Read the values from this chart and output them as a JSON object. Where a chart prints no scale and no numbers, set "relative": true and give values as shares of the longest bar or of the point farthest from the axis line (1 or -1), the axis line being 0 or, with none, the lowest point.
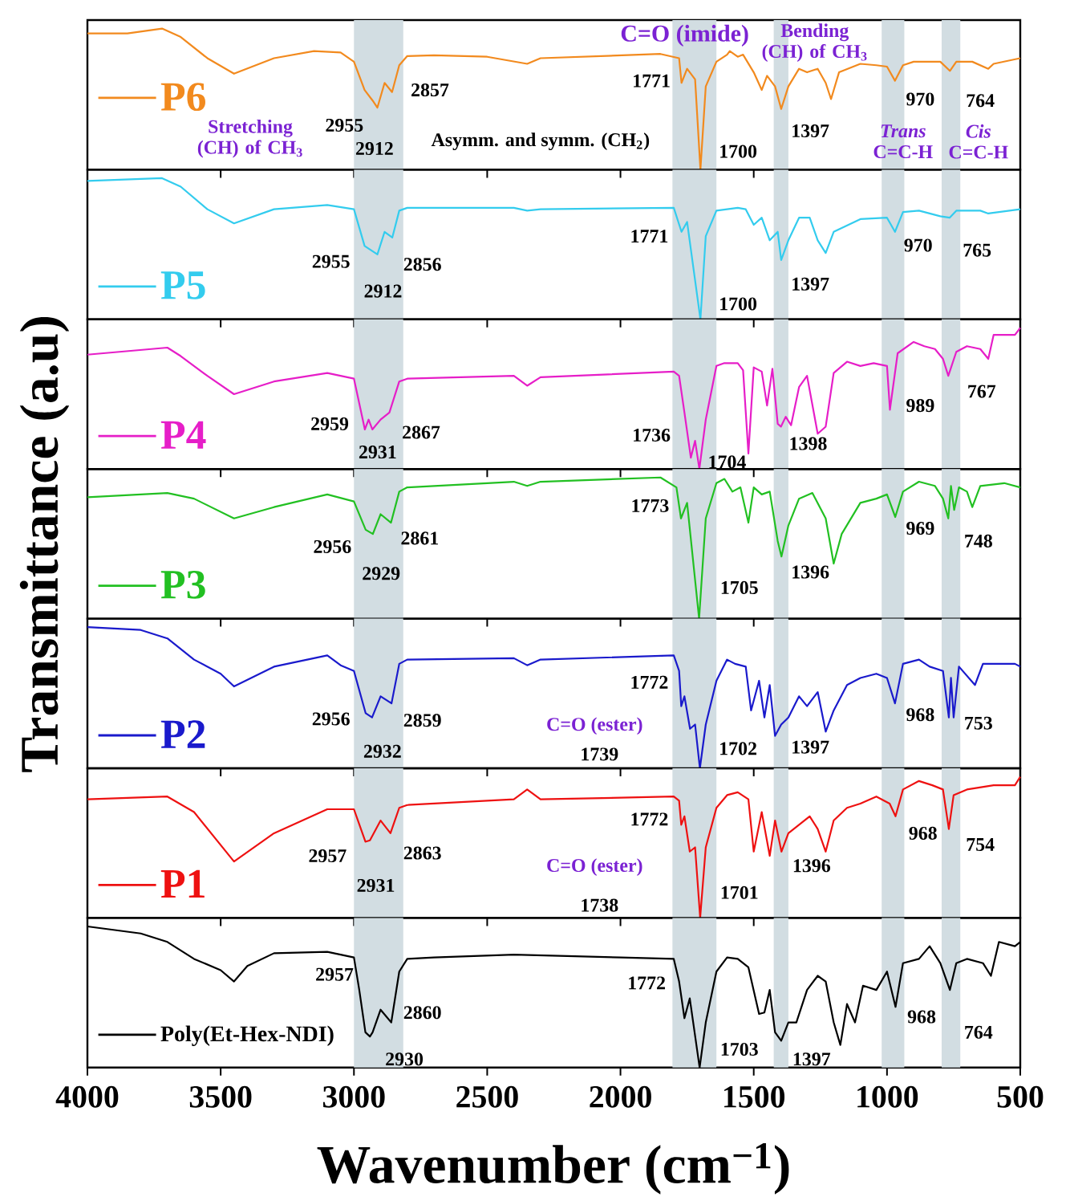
{
  "chart_data": [
    {
      "type": "line",
      "relative": true,
      "xlim": [
        4000,
        500
      ],
      "xticks": [
        4000,
        3500,
        3000,
        2500,
        2000,
        1500,
        1000,
        500
      ],
      "tick_labels": false,
      "legend": "left",
      "x": [
        4000,
        3850,
        3720,
        3650,
        3550,
        3450,
        3300,
        3150,
        3050,
        3000,
        2960,
        2930,
        2912,
        2885,
        2857,
        2830,
        2800,
        2700,
        2500,
        2350,
        2300,
        2000,
        1850,
        1780,
        1771,
        1750,
        1720,
        1700,
        1680,
        1640,
        1600,
        1590,
        1560,
        1540,
        1500,
        1470,
        1450,
        1420,
        1397,
        1370,
        1330,
        1300,
        1260,
        1230,
        1210,
        1180,
        1100,
        1040,
        1000,
        970,
        940,
        900,
        800,
        764,
        740,
        680,
        620,
        600,
        500
      ],
      "series": [
        {
          "name": "P6",
          "color": "#f28a1e",
          "values": [
            0.965,
            0.965,
            1.0,
            0.94,
            0.79,
            0.68,
            0.79,
            0.84,
            0.83,
            0.765,
            0.565,
            0.49,
            0.44,
            0.615,
            0.55,
            0.74,
            0.805,
            0.81,
            0.8,
            0.75,
            0.79,
            0.81,
            0.82,
            0.79,
            0.615,
            0.715,
            0.64,
            0,
            0.59,
            0.765,
            0.815,
            0.84,
            0.8,
            0.815,
            0.69,
            0.565,
            0.665,
            0.59,
            0.43,
            0.59,
            0.715,
            0.69,
            0.715,
            0.615,
            0.5,
            0.69,
            0.75,
            0.74,
            0.73,
            0.63,
            0.74,
            0.765,
            0.765,
            0.7,
            0.765,
            0.765,
            0.715,
            0.75,
            0.79
          ]
        }
      ],
      "bands": [
        {
          "axis": "x",
          "from": 3000,
          "to": 2815,
          "color": "#d2dde2",
          "label": "Stretching (CH) of CH$_{3}$"
        },
        {
          "axis": "x",
          "from": 1805,
          "to": 1640,
          "color": "#d2dde2",
          "label": "C=O (imide)"
        },
        {
          "axis": "x",
          "from": 1425,
          "to": 1370,
          "color": "#d2dde2",
          "label": "Bending (CH) of CH$_{3}$"
        },
        {
          "axis": "x",
          "from": 1020,
          "to": 935,
          "color": "#d2dde2",
          "label": "*Trans* C=C-H"
        },
        {
          "axis": "x",
          "from": 795,
          "to": 725,
          "color": "#d2dde2",
          "label": "*Cis* C=C-H"
        }
      ],
      "annotations": [
        "2955",
        "2912",
        "2857",
        "Asymm. and symm. (CH$_{2}$)",
        "1771",
        "1700",
        "1397",
        "970",
        "764"
      ]
    },
    {
      "type": "line",
      "relative": true,
      "xlim": [
        4000,
        500
      ],
      "xticks": [
        4000,
        3500,
        3000,
        2500,
        2000,
        1500,
        1000,
        500
      ],
      "tick_labels": false,
      "legend": "bottom left",
      "x": [
        4000,
        3720,
        3650,
        3550,
        3450,
        3300,
        3100,
        3000,
        2960,
        2912,
        2885,
        2856,
        2830,
        2800,
        2400,
        2350,
        2300,
        1800,
        1771,
        1750,
        1700,
        1680,
        1640,
        1560,
        1530,
        1500,
        1470,
        1440,
        1410,
        1397,
        1370,
        1330,
        1290,
        1260,
        1230,
        1200,
        1100,
        1000,
        970,
        940,
        880,
        800,
        765,
        740,
        650,
        620,
        500
      ],
      "series": [
        {
          "name": "P5",
          "color": "#33ccee",
          "values": [
            0.98,
            1.0,
            0.94,
            0.78,
            0.68,
            0.78,
            0.81,
            0.78,
            0.52,
            0.46,
            0.62,
            0.58,
            0.77,
            0.79,
            0.79,
            0.77,
            0.78,
            0.79,
            0.62,
            0.69,
            0,
            0.59,
            0.77,
            0.79,
            0.78,
            0.67,
            0.72,
            0.56,
            0.62,
            0.42,
            0.56,
            0.72,
            0.72,
            0.56,
            0.47,
            0.62,
            0.71,
            0.72,
            0.62,
            0.76,
            0.77,
            0.73,
            0.72,
            0.77,
            0.77,
            0.75,
            0.78
          ]
        }
      ],
      "bands": [
        {
          "axis": "x",
          "from": 3000,
          "to": 2815,
          "color": "#d2dde2"
        },
        {
          "axis": "x",
          "from": 1805,
          "to": 1640,
          "color": "#d2dde2"
        },
        {
          "axis": "x",
          "from": 1425,
          "to": 1370,
          "color": "#d2dde2"
        },
        {
          "axis": "x",
          "from": 1020,
          "to": 935,
          "color": "#d2dde2"
        },
        {
          "axis": "x",
          "from": 795,
          "to": 725,
          "color": "#d2dde2"
        }
      ],
      "annotations": [
        "2955",
        "2912",
        "2856",
        "1771",
        "1700",
        "1397",
        "970",
        "765"
      ]
    },
    {
      "type": "line",
      "relative": true,
      "xlim": [
        4000,
        500
      ],
      "xticks": [
        4000,
        3500,
        3000,
        2500,
        2000,
        1500,
        1000,
        500
      ],
      "tick_labels": false,
      "legend": "bottom left",
      "x": [
        4000,
        3700,
        3650,
        3550,
        3450,
        3300,
        3100,
        3000,
        2959,
        2945,
        2931,
        2900,
        2867,
        2830,
        2800,
        2400,
        2350,
        2300,
        1800,
        1780,
        1760,
        1736,
        1720,
        1704,
        1680,
        1640,
        1610,
        1560,
        1540,
        1520,
        1500,
        1470,
        1450,
        1430,
        1410,
        1398,
        1380,
        1360,
        1330,
        1300,
        1260,
        1230,
        1200,
        1150,
        1100,
        1050,
        1000,
        989,
        960,
        900,
        860,
        820,
        790,
        770,
        740,
        700,
        650,
        620,
        600,
        520,
        500
      ],
      "series": [
        {
          "name": "P4",
          "color": "#e61ec8",
          "values": [
            0.81,
            0.86,
            0.8,
            0.66,
            0.53,
            0.62,
            0.68,
            0.64,
            0.28,
            0.35,
            0.28,
            0.35,
            0.4,
            0.62,
            0.64,
            0.66,
            0.59,
            0.65,
            0.69,
            0.66,
            0.4,
            0.08,
            0.2,
            0,
            0.35,
            0.73,
            0.75,
            0.75,
            0.7,
            0.11,
            0.72,
            0.69,
            0.45,
            0.71,
            0.32,
            0.3,
            0.37,
            0.31,
            0.58,
            0.66,
            0.25,
            0.3,
            0.68,
            0.76,
            0.73,
            0.75,
            0.73,
            0.42,
            0.82,
            0.9,
            0.87,
            0.85,
            0.78,
            0.66,
            0.83,
            0.87,
            0.85,
            0.78,
            0.95,
            0.95,
            1.0
          ]
        }
      ],
      "bands": [
        {
          "axis": "x",
          "from": 3000,
          "to": 2815,
          "color": "#d2dde2"
        },
        {
          "axis": "x",
          "from": 1805,
          "to": 1640,
          "color": "#d2dde2"
        },
        {
          "axis": "x",
          "from": 1425,
          "to": 1370,
          "color": "#d2dde2"
        },
        {
          "axis": "x",
          "from": 1020,
          "to": 935,
          "color": "#d2dde2"
        },
        {
          "axis": "x",
          "from": 795,
          "to": 725,
          "color": "#d2dde2"
        }
      ],
      "annotations": [
        "2959",
        "2931",
        "2867",
        "1736",
        "1704",
        "1398",
        "989",
        "767"
      ]
    },
    {
      "type": "line",
      "relative": true,
      "xlim": [
        4000,
        500
      ],
      "xticks": [
        4000,
        3500,
        3000,
        2500,
        2000,
        1500,
        1000,
        500
      ],
      "tick_labels": false,
      "legend": "bottom left",
      "ylabel": "Transmittance (a.u)",
      "x": [
        4000,
        3700,
        3600,
        3450,
        3300,
        3100,
        3000,
        2956,
        2929,
        2900,
        2861,
        2830,
        2800,
        2400,
        2350,
        2300,
        1850,
        1790,
        1773,
        1750,
        1705,
        1680,
        1640,
        1610,
        1580,
        1550,
        1520,
        1500,
        1470,
        1440,
        1410,
        1396,
        1370,
        1330,
        1280,
        1230,
        1200,
        1170,
        1100,
        1040,
        1000,
        969,
        940,
        880,
        820,
        790,
        770,
        760,
        748,
        730,
        700,
        680,
        650,
        560,
        500
      ],
      "series": [
        {
          "name": "P3",
          "color": "#22c022",
          "values": [
            0.86,
            0.89,
            0.85,
            0.71,
            0.79,
            0.88,
            0.83,
            0.63,
            0.6,
            0.74,
            0.68,
            0.9,
            0.93,
            0.97,
            0.94,
            0.97,
            1.0,
            0.93,
            0.71,
            0.82,
            0,
            0.71,
            0.96,
            0.99,
            0.9,
            0.93,
            0.68,
            0.93,
            0.88,
            0.9,
            0.55,
            0.44,
            0.66,
            0.85,
            0.89,
            0.71,
            0.39,
            0.6,
            0.82,
            0.85,
            0.88,
            0.72,
            0.9,
            0.97,
            0.94,
            0.85,
            0.71,
            0.94,
            0.77,
            0.93,
            0.9,
            0.79,
            0.94,
            0.96,
            0.93
          ]
        }
      ],
      "bands": [
        {
          "axis": "x",
          "from": 3000,
          "to": 2815,
          "color": "#d2dde2"
        },
        {
          "axis": "x",
          "from": 1805,
          "to": 1640,
          "color": "#d2dde2"
        },
        {
          "axis": "x",
          "from": 1425,
          "to": 1370,
          "color": "#d2dde2"
        },
        {
          "axis": "x",
          "from": 1020,
          "to": 935,
          "color": "#d2dde2"
        },
        {
          "axis": "x",
          "from": 795,
          "to": 725,
          "color": "#d2dde2"
        }
      ],
      "annotations": [
        "2956",
        "2929",
        "2861",
        "1773",
        "1705",
        "1396",
        "969",
        "748"
      ]
    },
    {
      "type": "line",
      "relative": true,
      "xlim": [
        4000,
        500
      ],
      "xticks": [
        4000,
        3500,
        3000,
        2500,
        2000,
        1500,
        1000,
        500
      ],
      "tick_labels": false,
      "legend": "bottom left",
      "x": [
        4000,
        3800,
        3700,
        3600,
        3500,
        3450,
        3300,
        3100,
        3050,
        3000,
        2956,
        2932,
        2900,
        2859,
        2830,
        2800,
        2400,
        2350,
        2300,
        1800,
        1780,
        1772,
        1760,
        1739,
        1720,
        1702,
        1680,
        1640,
        1600,
        1570,
        1530,
        1510,
        1480,
        1460,
        1440,
        1420,
        1397,
        1370,
        1330,
        1300,
        1260,
        1230,
        1200,
        1150,
        1100,
        1040,
        1000,
        970,
        940,
        880,
        840,
        790,
        768,
        760,
        750,
        730,
        670,
        640,
        520,
        500
      ],
      "series": [
        {
          "name": "P2",
          "color": "#1a1acc",
          "values": [
            1.0,
            0.98,
            0.92,
            0.77,
            0.67,
            0.58,
            0.72,
            0.8,
            0.73,
            0.69,
            0.39,
            0.36,
            0.51,
            0.46,
            0.74,
            0.77,
            0.78,
            0.73,
            0.77,
            0.8,
            0.69,
            0.44,
            0.51,
            0.28,
            0.31,
            0,
            0.31,
            0.62,
            0.77,
            0.74,
            0.72,
            0.41,
            0.62,
            0.36,
            0.59,
            0.23,
            0.31,
            0.36,
            0.51,
            0.44,
            0.54,
            0.26,
            0.41,
            0.59,
            0.64,
            0.67,
            0.64,
            0.46,
            0.74,
            0.77,
            0.72,
            0.69,
            0.36,
            0.64,
            0.36,
            0.72,
            0.59,
            0.74,
            0.74,
            0.72
          ]
        }
      ],
      "bands": [
        {
          "axis": "x",
          "from": 3000,
          "to": 2815,
          "color": "#d2dde2"
        },
        {
          "axis": "x",
          "from": 1805,
          "to": 1640,
          "color": "#d2dde2",
          "label": "C=O (ester)"
        },
        {
          "axis": "x",
          "from": 1425,
          "to": 1370,
          "color": "#d2dde2"
        },
        {
          "axis": "x",
          "from": 1020,
          "to": 935,
          "color": "#d2dde2"
        },
        {
          "axis": "x",
          "from": 795,
          "to": 725,
          "color": "#d2dde2"
        }
      ],
      "annotations": [
        "2956",
        "2932",
        "2859",
        "1772",
        "1739",
        "1702",
        "1397",
        "968",
        "753"
      ]
    },
    {
      "type": "line",
      "relative": true,
      "xlim": [
        4000,
        500
      ],
      "xticks": [
        4000,
        3500,
        3000,
        2500,
        2000,
        1500,
        1000,
        500
      ],
      "tick_labels": false,
      "legend": "bottom left",
      "x": [
        4000,
        3700,
        3600,
        3450,
        3300,
        3100,
        3000,
        2957,
        2940,
        2900,
        2863,
        2830,
        2800,
        2400,
        2350,
        2300,
        1800,
        1780,
        1772,
        1760,
        1740,
        1720,
        1701,
        1680,
        1640,
        1600,
        1560,
        1520,
        1500,
        1470,
        1440,
        1420,
        1396,
        1370,
        1330,
        1290,
        1260,
        1230,
        1200,
        1150,
        1100,
        1040,
        990,
        968,
        940,
        880,
        830,
        790,
        768,
        750,
        700,
        600,
        520,
        500
      ],
      "series": [
        {
          "name": "P1",
          "color": "#ee1111",
          "values": [
            0.84,
            0.86,
            0.75,
            0.4,
            0.6,
            0.77,
            0.77,
            0.54,
            0.55,
            0.69,
            0.6,
            0.78,
            0.8,
            0.84,
            0.91,
            0.84,
            0.86,
            0.83,
            0.66,
            0.72,
            0.47,
            0.5,
            0,
            0.5,
            0.78,
            0.87,
            0.89,
            0.84,
            0.47,
            0.75,
            0.44,
            0.69,
            0.47,
            0.6,
            0.66,
            0.72,
            0.63,
            0.47,
            0.69,
            0.78,
            0.81,
            0.86,
            0.81,
            0.72,
            0.91,
            0.97,
            0.94,
            0.91,
            0.63,
            0.87,
            0.91,
            0.94,
            0.94,
            1.0
          ]
        }
      ],
      "bands": [
        {
          "axis": "x",
          "from": 3000,
          "to": 2815,
          "color": "#d2dde2"
        },
        {
          "axis": "x",
          "from": 1805,
          "to": 1640,
          "color": "#d2dde2",
          "label": "C=O (ester)"
        },
        {
          "axis": "x",
          "from": 1425,
          "to": 1370,
          "color": "#d2dde2"
        },
        {
          "axis": "x",
          "from": 1020,
          "to": 935,
          "color": "#d2dde2"
        },
        {
          "axis": "x",
          "from": 795,
          "to": 725,
          "color": "#d2dde2"
        }
      ],
      "annotations": [
        "2957",
        "2931",
        "2863",
        "1772",
        "1738",
        "1701",
        "1396",
        "968",
        "754"
      ]
    },
    {
      "type": "line",
      "relative": true,
      "xlim": [
        4000,
        500
      ],
      "xticks": [
        4000,
        3500,
        3000,
        2500,
        2000,
        1500,
        1000,
        500
      ],
      "tick_labels": "x",
      "legend": "bottom left",
      "xlabel": "Wavenumber (cm$^{−1}$)",
      "x": [
        4000,
        3800,
        3700,
        3600,
        3500,
        3450,
        3400,
        3300,
        3100,
        3000,
        2980,
        2957,
        2940,
        2930,
        2900,
        2860,
        2830,
        2800,
        2700,
        2400,
        2000,
        1800,
        1780,
        1760,
        1740,
        1703,
        1680,
        1640,
        1600,
        1560,
        1520,
        1480,
        1460,
        1440,
        1420,
        1397,
        1370,
        1340,
        1300,
        1260,
        1230,
        1200,
        1175,
        1150,
        1120,
        1090,
        1040,
        1000,
        968,
        940,
        880,
        840,
        800,
        764,
        740,
        700,
        640,
        610,
        580,
        520,
        500
      ],
      "series": [
        {
          "name": "Poly(Et-Hex-NDI)",
          "color": "#000000",
          "values": [
            1.0,
            0.95,
            0.89,
            0.77,
            0.69,
            0.61,
            0.72,
            0.81,
            0.82,
            0.78,
            0.55,
            0.25,
            0.22,
            0.25,
            0.41,
            0.32,
            0.68,
            0.77,
            0.78,
            0.8,
            0.78,
            0.77,
            0.61,
            0.35,
            0.49,
            0,
            0.32,
            0.68,
            0.78,
            0.77,
            0.71,
            0.38,
            0.39,
            0.55,
            0.25,
            0.19,
            0.32,
            0.32,
            0.55,
            0.65,
            0.61,
            0.32,
            0.16,
            0.45,
            0.32,
            0.58,
            0.55,
            0.68,
            0.43,
            0.74,
            0.77,
            0.86,
            0.74,
            0.55,
            0.74,
            0.77,
            0.74,
            0.65,
            0.89,
            0.86,
            0.89
          ]
        }
      ],
      "bands": [
        {
          "axis": "x",
          "from": 3000,
          "to": 2815,
          "color": "#d2dde2"
        },
        {
          "axis": "x",
          "from": 1805,
          "to": 1640,
          "color": "#d2dde2"
        },
        {
          "axis": "x",
          "from": 1425,
          "to": 1370,
          "color": "#d2dde2"
        },
        {
          "axis": "x",
          "from": 1020,
          "to": 935,
          "color": "#d2dde2"
        },
        {
          "axis": "x",
          "from": 795,
          "to": 725,
          "color": "#d2dde2"
        }
      ],
      "annotations": [
        "2957",
        "2930",
        "2860",
        "1772",
        "1703",
        "1397",
        "968",
        "764"
      ]
    }
  ]
}
